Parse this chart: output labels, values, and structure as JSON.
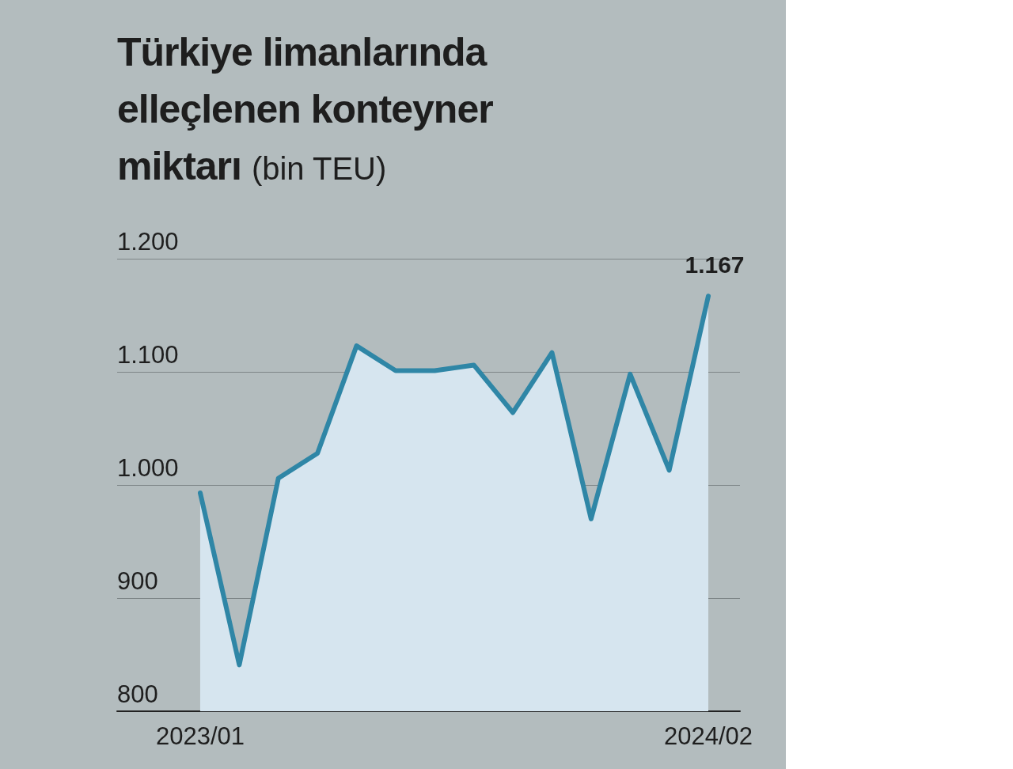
{
  "chart_data": {
    "type": "area",
    "title": "Türkiye limanlarında elleçlenen konteyner miktarı",
    "subtitle": "(bin TEU)",
    "categories": [
      "2023/01",
      null,
      null,
      null,
      null,
      null,
      null,
      null,
      null,
      null,
      null,
      null,
      null,
      "2024/02"
    ],
    "series": [
      {
        "color": "#2f86a6",
        "values": [
          993,
          841,
          1006,
          1028,
          1123,
          1101,
          1101,
          1106,
          1064,
          1117,
          970,
          1098,
          1013,
          1167
        ],
        "value_labels": [
          null,
          null,
          null,
          null,
          null,
          null,
          null,
          null,
          null,
          null,
          null,
          null,
          null,
          "1.167"
        ]
      }
    ],
    "ylim": [
      800,
      1200
    ],
    "yticks": [
      800,
      900,
      {
        "value": 1000,
        "label": "1.000"
      },
      {
        "value": 1100,
        "label": "1.100"
      },
      {
        "value": 1200,
        "label": "1.200"
      }
    ],
    "grid": "y",
    "marker": "none",
    "line_style": "solid"
  }
}
